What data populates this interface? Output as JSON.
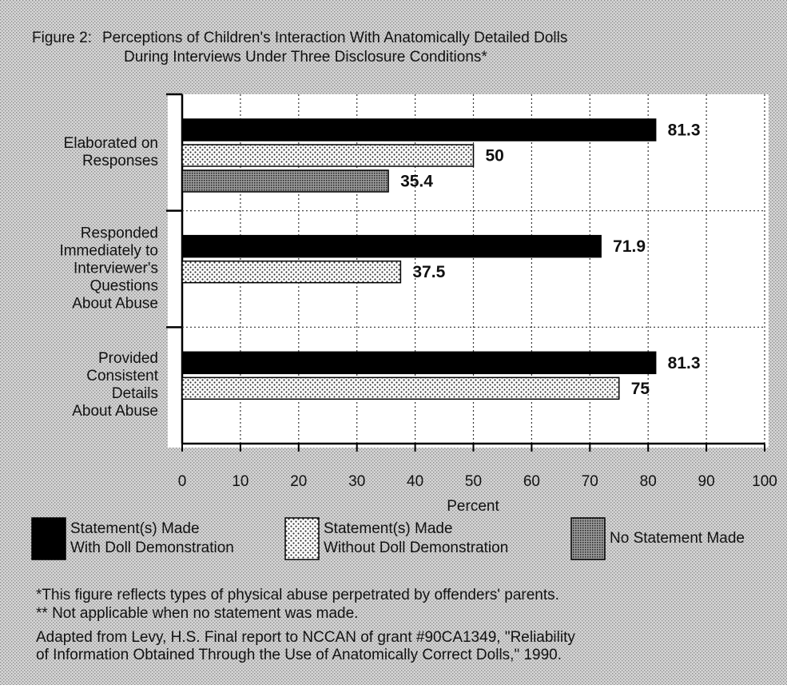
{
  "chart_data": {
    "type": "hbar",
    "title_label": "Figure 2:",
    "title": [
      "Perceptions of Children's Interaction With Anatomically Detailed Dolls",
      "During Interviews Under Three Disclosure Conditions*"
    ],
    "categories": [
      [
        "Elaborated on",
        "Responses"
      ],
      [
        "Responded",
        "Immediately to",
        "Interviewer's",
        "Questions",
        "About Abuse"
      ],
      [
        "Provided",
        "Consistent",
        "Details",
        "About Abuse"
      ]
    ],
    "series": [
      {
        "name": [
          "Statement(s) Made",
          "With Doll Demonstration"
        ],
        "color": "#000000",
        "values": [
          81.3,
          71.9,
          81.3
        ]
      },
      {
        "name": [
          "Statement(s) Made",
          "Without Doll Demonstration"
        ],
        "color": "#e8e8e8",
        "values": [
          50,
          37.5,
          75
        ]
      },
      {
        "name": [
          "No Statement Made"
        ],
        "color": "#6a6a6a",
        "values": [
          35.4,
          null,
          null
        ]
      }
    ],
    "xlim": [
      0,
      100
    ],
    "xticks": [
      0,
      10,
      20,
      30,
      40,
      50,
      60,
      70,
      80,
      90,
      100
    ],
    "xlabel": "Percent",
    "grid": true,
    "notes": [
      "*This figure reflects types of physical abuse perpetrated by offenders' parents.",
      "** Not applicable when no statement was made.",
      "Adapted from Levy, H.S. Final report to NCCAN of grant #90CA1349, \"Reliability",
      "of Information Obtained Through the Use of Anatomically Correct Dolls,\" 1990."
    ]
  }
}
